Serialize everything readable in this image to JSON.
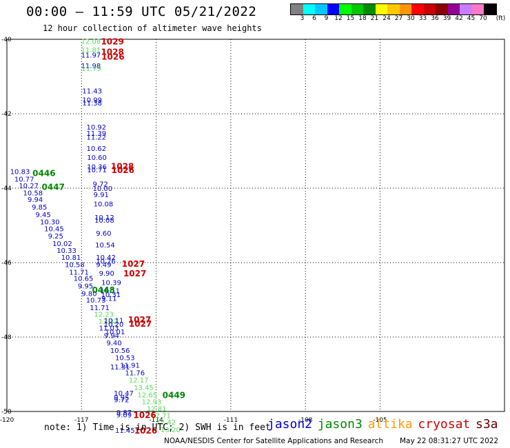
{
  "header": {
    "title": "00:00 – 11:59 UTC 05/21/2022",
    "subtitle": "12 hour collection of altimeter wave heights"
  },
  "colorbar": {
    "unit_label": "(ft)",
    "swatches": [
      "#808080",
      "#00ffff",
      "#00c8ff",
      "#0000ff",
      "#00ff00",
      "#00c800",
      "#008c00",
      "#ffff00",
      "#ffc800",
      "#ff9600",
      "#ff0000",
      "#c80000",
      "#8c0000",
      "#960096",
      "#c87dff",
      "#ff78c8",
      "#000000"
    ],
    "ticks": [
      "3",
      "6",
      "9",
      "12",
      "15",
      "18",
      "21",
      "24",
      "27",
      "30",
      "33",
      "36",
      "39",
      "42",
      "45",
      "70"
    ]
  },
  "map": {
    "lon_range": [
      -120,
      -100
    ],
    "lat_range": [
      -50,
      -40
    ],
    "lat_ticks": [
      "-40",
      "-42",
      "-44",
      "-46",
      "-48",
      "-50"
    ],
    "lon_ticks": [
      "-120",
      "-117",
      "-114",
      "-111",
      "-108",
      "-105"
    ]
  },
  "observations": [
    {
      "text": "12.08",
      "lon": -117.02,
      "lat": -40.05,
      "color": "#55dd55"
    },
    {
      "text": "11.81",
      "lon": -117.02,
      "lat": -40.28,
      "color": "#55dd55"
    },
    {
      "text": "11.97",
      "lon": -117.02,
      "lat": -40.42,
      "color": "#0000cc"
    },
    {
      "text": "11.98",
      "lon": -117.02,
      "lat": -40.7,
      "color": "#0000cc"
    },
    {
      "text": "11.79",
      "lon": -117.0,
      "lat": -40.78,
      "color": "#55dd55"
    },
    {
      "text": "11.43",
      "lon": -116.97,
      "lat": -41.38,
      "color": "#0000cc"
    },
    {
      "text": "10.99",
      "lon": -116.97,
      "lat": -41.62,
      "color": "#0000cc"
    },
    {
      "text": "11.38",
      "lon": -116.97,
      "lat": -41.7,
      "color": "#0000cc"
    },
    {
      "text": "10.92",
      "lon": -116.8,
      "lat": -42.35,
      "color": "#0000cc"
    },
    {
      "text": "11.39",
      "lon": -116.8,
      "lat": -42.52,
      "color": "#0000cc"
    },
    {
      "text": "11.22",
      "lon": -116.8,
      "lat": -42.62,
      "color": "#0000cc"
    },
    {
      "text": "10.62",
      "lon": -116.8,
      "lat": -42.93,
      "color": "#0000cc"
    },
    {
      "text": "10.60",
      "lon": -116.78,
      "lat": -43.17,
      "color": "#0000cc"
    },
    {
      "text": "10.36",
      "lon": -116.78,
      "lat": -43.42,
      "color": "#0000cc"
    },
    {
      "text": "10.71",
      "lon": -116.78,
      "lat": -43.5,
      "color": "#0000cc"
    },
    {
      "text": "10.83",
      "lon": -119.87,
      "lat": -43.55,
      "color": "#0000cc"
    },
    {
      "text": "10.77",
      "lon": -119.7,
      "lat": -43.75,
      "color": "#0000cc"
    },
    {
      "text": "10.27",
      "lon": -119.52,
      "lat": -43.93,
      "color": "#0000cc"
    },
    {
      "text": "10.58",
      "lon": -119.35,
      "lat": -44.12,
      "color": "#0000cc"
    },
    {
      "text": "9.94",
      "lon": -119.17,
      "lat": -44.3,
      "color": "#0000cc"
    },
    {
      "text": "9.85",
      "lon": -119.0,
      "lat": -44.5,
      "color": "#0000cc"
    },
    {
      "text": "9.45",
      "lon": -118.85,
      "lat": -44.7,
      "color": "#0000cc"
    },
    {
      "text": "10.30",
      "lon": -118.67,
      "lat": -44.9,
      "color": "#0000cc"
    },
    {
      "text": "10.45",
      "lon": -118.5,
      "lat": -45.08,
      "color": "#0000cc"
    },
    {
      "text": "9.25",
      "lon": -118.35,
      "lat": -45.28,
      "color": "#0000cc"
    },
    {
      "text": "10.02",
      "lon": -118.17,
      "lat": -45.48,
      "color": "#0000cc"
    },
    {
      "text": "10.33",
      "lon": -118.0,
      "lat": -45.67,
      "color": "#0000cc"
    },
    {
      "text": "10.81",
      "lon": -117.82,
      "lat": -45.85,
      "color": "#0000cc"
    },
    {
      "text": "10.58",
      "lon": -117.67,
      "lat": -46.05,
      "color": "#0000cc"
    },
    {
      "text": "11.71",
      "lon": -117.5,
      "lat": -46.25,
      "color": "#0000cc"
    },
    {
      "text": "10.65",
      "lon": -117.32,
      "lat": -46.42,
      "color": "#0000cc"
    },
    {
      "text": "9.95",
      "lon": -117.15,
      "lat": -46.62,
      "color": "#0000cc"
    },
    {
      "text": "9.80",
      "lon": -117.0,
      "lat": -46.82,
      "color": "#0000cc"
    },
    {
      "text": "10.73",
      "lon": -116.82,
      "lat": -47.0,
      "color": "#0000cc"
    },
    {
      "text": "11.71",
      "lon": -116.67,
      "lat": -47.2,
      "color": "#0000cc"
    },
    {
      "text": "12.23",
      "lon": -116.5,
      "lat": -47.38,
      "color": "#55dd55"
    },
    {
      "text": "13.32",
      "lon": -116.32,
      "lat": -47.57,
      "color": "#55dd55"
    },
    {
      "text": "9.72",
      "lon": -116.55,
      "lat": -43.88,
      "color": "#0000cc"
    },
    {
      "text": "10.00",
      "lon": -116.55,
      "lat": -44.0,
      "color": "#0000cc"
    },
    {
      "text": "9.91",
      "lon": -116.52,
      "lat": -44.17,
      "color": "#0000cc"
    },
    {
      "text": "10.08",
      "lon": -116.52,
      "lat": -44.42,
      "color": "#0000cc"
    },
    {
      "text": "10.12",
      "lon": -116.48,
      "lat": -44.78,
      "color": "#0000cc"
    },
    {
      "text": "10.08",
      "lon": -116.48,
      "lat": -44.85,
      "color": "#0000cc"
    },
    {
      "text": "9.60",
      "lon": -116.42,
      "lat": -45.2,
      "color": "#0000cc"
    },
    {
      "text": "10.54",
      "lon": -116.45,
      "lat": -45.52,
      "color": "#0000cc"
    },
    {
      "text": "10.42",
      "lon": -116.42,
      "lat": -45.85,
      "color": "#0000cc"
    },
    {
      "text": "10.26",
      "lon": -116.42,
      "lat": -45.95,
      "color": "#0000cc"
    },
    {
      "text": "9.49",
      "lon": -116.42,
      "lat": -46.05,
      "color": "#0000cc"
    },
    {
      "text": "9.90",
      "lon": -116.3,
      "lat": -46.28,
      "color": "#0000cc"
    },
    {
      "text": "10.39",
      "lon": -116.2,
      "lat": -46.53,
      "color": "#0000cc"
    },
    {
      "text": "10.11",
      "lon": -116.25,
      "lat": -46.75,
      "color": "#0000cc"
    },
    {
      "text": "10.31",
      "lon": -116.22,
      "lat": -46.85,
      "color": "#0000cc"
    },
    {
      "text": "9.11",
      "lon": -116.2,
      "lat": -46.95,
      "color": "#0000cc"
    },
    {
      "text": "10.11",
      "lon": -116.1,
      "lat": -47.55,
      "color": "#0000cc"
    },
    {
      "text": "10.20",
      "lon": -116.1,
      "lat": -47.65,
      "color": "#0000cc"
    },
    {
      "text": "11.03",
      "lon": -116.3,
      "lat": -47.75,
      "color": "#0000cc"
    },
    {
      "text": "10.01",
      "lon": -116.05,
      "lat": -47.85,
      "color": "#0000cc"
    },
    {
      "text": "9.94",
      "lon": -116.1,
      "lat": -47.95,
      "color": "#0000cc"
    },
    {
      "text": "9.40",
      "lon": -116.0,
      "lat": -48.15,
      "color": "#0000cc"
    },
    {
      "text": "10.56",
      "lon": -115.85,
      "lat": -48.35,
      "color": "#0000cc"
    },
    {
      "text": "10.53",
      "lon": -115.65,
      "lat": -48.55,
      "color": "#0000cc"
    },
    {
      "text": "11.91",
      "lon": -115.45,
      "lat": -48.75,
      "color": "#0000cc"
    },
    {
      "text": "11.31",
      "lon": -115.85,
      "lat": -48.8,
      "color": "#0000cc"
    },
    {
      "text": "11.76",
      "lon": -115.25,
      "lat": -48.95,
      "color": "#0000cc"
    },
    {
      "text": "12.17",
      "lon": -115.1,
      "lat": -49.15,
      "color": "#55dd55"
    },
    {
      "text": "13.45",
      "lon": -114.9,
      "lat": -49.35,
      "color": "#55dd55"
    },
    {
      "text": "12.65",
      "lon": -114.75,
      "lat": -49.55,
      "color": "#55dd55"
    },
    {
      "text": "10.47",
      "lon": -115.7,
      "lat": -49.5,
      "color": "#0000cc"
    },
    {
      "text": "9.95",
      "lon": -115.7,
      "lat": -49.62,
      "color": "#0000cc"
    },
    {
      "text": "9.72",
      "lon": -115.7,
      "lat": -49.68,
      "color": "#0000cc"
    },
    {
      "text": "12.93",
      "lon": -114.58,
      "lat": -49.73,
      "color": "#55dd55"
    },
    {
      "text": "12.81",
      "lon": -114.38,
      "lat": -49.92,
      "color": "#55dd55"
    },
    {
      "text": "9.87",
      "lon": -115.6,
      "lat": -50.02,
      "color": "#0000cc"
    },
    {
      "text": "9.09",
      "lon": -115.6,
      "lat": -50.08,
      "color": "#0000cc"
    },
    {
      "text": "12.71",
      "lon": -114.2,
      "lat": -50.1,
      "color": "#55dd55"
    },
    {
      "text": "12.42",
      "lon": -114.0,
      "lat": -50.28,
      "color": "#55dd55"
    },
    {
      "text": "13.20",
      "lon": -113.82,
      "lat": -50.48,
      "color": "#55dd55"
    },
    {
      "text": "11.45",
      "lon": -115.65,
      "lat": -50.5,
      "color": "#0000cc"
    }
  ],
  "passes": [
    {
      "text": "1029",
      "lon": -116.22,
      "lat": -40.05,
      "color": "#cc0000"
    },
    {
      "text": "1028",
      "lon": -116.22,
      "lat": -40.32,
      "color": "#cc0000"
    },
    {
      "text": "1026",
      "lon": -116.2,
      "lat": -40.45,
      "color": "#cc0000"
    },
    {
      "text": "1028",
      "lon": -115.82,
      "lat": -43.4,
      "color": "#cc0000"
    },
    {
      "text": "1026",
      "lon": -115.8,
      "lat": -43.5,
      "color": "#cc0000"
    },
    {
      "text": "0446",
      "lon": -118.97,
      "lat": -43.58,
      "color": "#008800"
    },
    {
      "text": "0447",
      "lon": -118.6,
      "lat": -43.95,
      "color": "#008800"
    },
    {
      "text": "1027",
      "lon": -115.38,
      "lat": -46.02,
      "color": "#cc0000"
    },
    {
      "text": "1027",
      "lon": -115.32,
      "lat": -46.28,
      "color": "#cc0000"
    },
    {
      "text": "0448",
      "lon": -116.58,
      "lat": -46.72,
      "color": "#008800"
    },
    {
      "text": "1027",
      "lon": -115.13,
      "lat": -47.52,
      "color": "#cc0000"
    },
    {
      "text": "1027",
      "lon": -115.1,
      "lat": -47.63,
      "color": "#cc0000"
    },
    {
      "text": "0449",
      "lon": -113.75,
      "lat": -49.55,
      "color": "#008800"
    },
    {
      "text": "1026",
      "lon": -114.92,
      "lat": -50.08,
      "color": "#cc0000"
    },
    {
      "text": "1026",
      "lon": -114.88,
      "lat": -50.5,
      "color": "#cc0000"
    }
  ],
  "footer": {
    "note": "note: 1) Time is in UTC; 2) SWH is in feet",
    "legend": [
      {
        "label": "jason2",
        "color": "#0000cc"
      },
      {
        "label": "jason3",
        "color": "#008800"
      },
      {
        "label": "altika",
        "color": "#ff9900"
      },
      {
        "label": "cryosat",
        "color": "#cc0000"
      },
      {
        "label": "s3a",
        "color": "#660000"
      }
    ],
    "credit": "NOAA/NESDIS Center for Satellite Applications and Research",
    "timestamp": "May 22 08:31:27 UTC 2022"
  }
}
